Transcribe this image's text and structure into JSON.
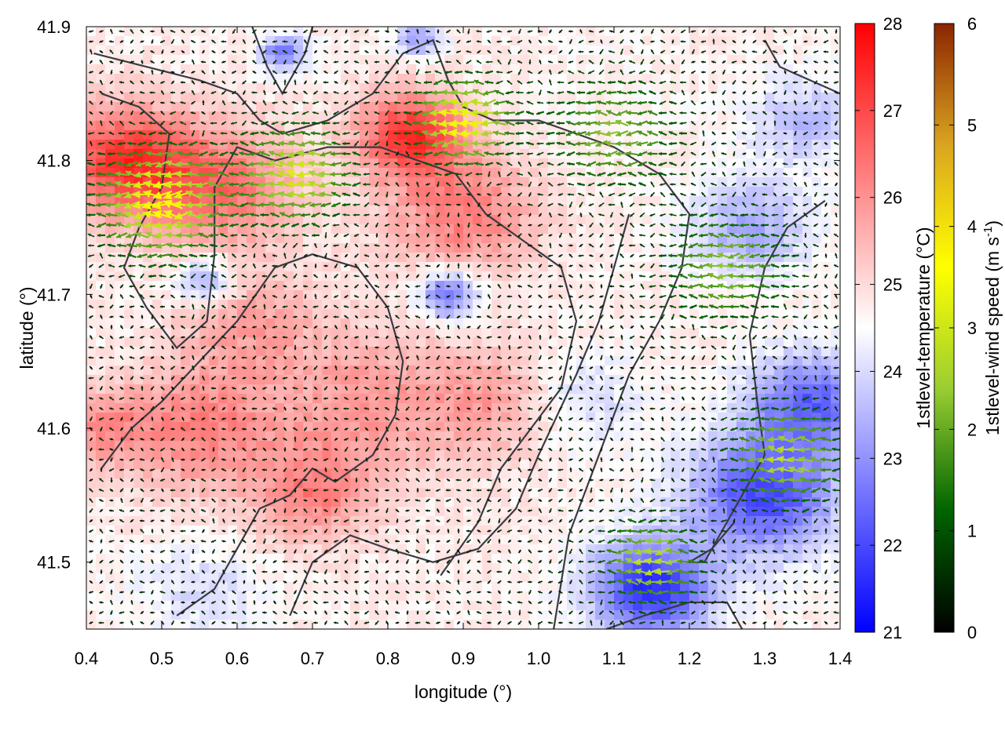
{
  "chart_data": {
    "type": "heatmap",
    "title": "",
    "xlabel": "longitude (°)",
    "ylabel": "latitude (°)",
    "xlim": [
      0.4,
      1.4
    ],
    "ylim": [
      41.45,
      41.9
    ],
    "xticks": [
      "0.4",
      "0.5",
      "0.6",
      "0.7",
      "0.8",
      "0.9",
      "1.0",
      "1.1",
      "1.2",
      "1.3",
      "1.4"
    ],
    "yticks": [
      "41.5",
      "41.6",
      "41.7",
      "41.8",
      "41.9"
    ],
    "grid": false,
    "layers": [
      {
        "name": "1stlevel-temperature",
        "kind": "color-map",
        "unit": "°C"
      },
      {
        "name": "1stlevel-wind speed",
        "kind": "wind-vectors",
        "unit": "m s-1"
      },
      {
        "name": "coastline / terrain contours",
        "kind": "lines"
      }
    ],
    "colorbars": [
      {
        "label": "1stlevel-temperature (°C)",
        "range": [
          21,
          28
        ],
        "ticks": [
          "21",
          "22",
          "23",
          "24",
          "25",
          "26",
          "27",
          "28"
        ],
        "colors": [
          "#0000ff",
          "#ffffff",
          "#ff0000"
        ]
      },
      {
        "label_main": "1stlevel-wind speed (m s",
        "label_sup": "-1",
        "label_end": ")",
        "range": [
          0,
          6
        ],
        "ticks": [
          "0",
          "1",
          "2",
          "3",
          "4",
          "5",
          "6"
        ],
        "colors": [
          "#000000",
          "#006400",
          "#9acd32",
          "#ffff00",
          "#daa520",
          "#8b2500"
        ]
      }
    ],
    "temperature_hotspots": [
      {
        "lon": 0.45,
        "lat": 41.8,
        "value": 27.2,
        "spread": 0.09
      },
      {
        "lon": 0.58,
        "lat": 41.78,
        "value": 26.4,
        "spread": 0.1
      },
      {
        "lon": 0.83,
        "lat": 41.82,
        "value": 27.3,
        "spread": 0.07
      },
      {
        "lon": 0.9,
        "lat": 41.76,
        "value": 26.3,
        "spread": 0.1
      },
      {
        "lon": 0.78,
        "lat": 41.62,
        "value": 25.9,
        "spread": 0.12
      },
      {
        "lon": 0.55,
        "lat": 41.6,
        "value": 26.2,
        "spread": 0.11
      },
      {
        "lon": 0.7,
        "lat": 41.55,
        "value": 26.1,
        "spread": 0.08
      },
      {
        "lon": 0.95,
        "lat": 41.62,
        "value": 25.8,
        "spread": 0.09
      },
      {
        "lon": 0.62,
        "lat": 41.68,
        "value": 25.7,
        "spread": 0.09
      },
      {
        "lon": 0.42,
        "lat": 41.6,
        "value": 25.8,
        "spread": 0.06
      },
      {
        "lon": 0.88,
        "lat": 41.7,
        "value": 22.3,
        "spread": 0.04
      },
      {
        "lon": 0.56,
        "lat": 41.71,
        "value": 23.1,
        "spread": 0.04
      },
      {
        "lon": 0.66,
        "lat": 41.88,
        "value": 22.6,
        "spread": 0.03
      },
      {
        "lon": 0.84,
        "lat": 41.89,
        "value": 23.2,
        "spread": 0.03
      },
      {
        "lon": 1.15,
        "lat": 41.48,
        "value": 21.6,
        "spread": 0.08
      },
      {
        "lon": 1.3,
        "lat": 41.55,
        "value": 22.0,
        "spread": 0.1
      },
      {
        "lon": 1.36,
        "lat": 41.62,
        "value": 22.4,
        "spread": 0.08
      },
      {
        "lon": 1.28,
        "lat": 41.75,
        "value": 23.3,
        "spread": 0.08
      },
      {
        "lon": 1.35,
        "lat": 41.83,
        "value": 23.6,
        "spread": 0.07
      },
      {
        "lon": 1.05,
        "lat": 41.62,
        "value": 23.8,
        "spread": 0.08
      },
      {
        "lon": 0.55,
        "lat": 41.48,
        "value": 24.0,
        "spread": 0.08
      },
      {
        "lon": 1.1,
        "lat": 41.85,
        "value": 24.6,
        "spread": 0.1
      }
    ],
    "temperature_base": 24.7,
    "wind_base_direction": "from east (vectors point west)",
    "strong_wind_zones": [
      {
        "lon": 0.5,
        "lat": 41.77,
        "speed": 3.2,
        "spread": 0.08
      },
      {
        "lon": 0.9,
        "lat": 41.83,
        "speed": 3.2,
        "spread": 0.06
      },
      {
        "lon": 0.68,
        "lat": 41.79,
        "speed": 2.6,
        "spread": 0.07
      },
      {
        "lon": 1.15,
        "lat": 41.5,
        "speed": 2.4,
        "spread": 0.06
      },
      {
        "lon": 1.33,
        "lat": 41.58,
        "speed": 2.3,
        "spread": 0.07
      },
      {
        "lon": 1.25,
        "lat": 41.72,
        "speed": 1.8,
        "spread": 0.08
      },
      {
        "lon": 1.1,
        "lat": 41.82,
        "speed": 1.8,
        "spread": 0.08
      }
    ],
    "contours": [
      [
        [
          0.41,
          41.88
        ],
        [
          0.48,
          41.87
        ],
        [
          0.55,
          41.86
        ],
        [
          0.6,
          41.85
        ],
        [
          0.63,
          41.83
        ],
        [
          0.66,
          41.82
        ],
        [
          0.72,
          41.83
        ],
        [
          0.78,
          41.85
        ],
        [
          0.82,
          41.88
        ],
        [
          0.86,
          41.89
        ],
        [
          0.88,
          41.86
        ],
        [
          0.9,
          41.84
        ],
        [
          0.94,
          41.83
        ],
        [
          1.0,
          41.83
        ],
        [
          1.05,
          41.82
        ],
        [
          1.1,
          41.81
        ],
        [
          1.16,
          41.79
        ],
        [
          1.2,
          41.76
        ],
        [
          1.19,
          41.72
        ],
        [
          1.16,
          41.68
        ],
        [
          1.12,
          41.64
        ],
        [
          1.08,
          41.58
        ],
        [
          1.04,
          41.52
        ],
        [
          1.02,
          41.45
        ]
      ],
      [
        [
          0.42,
          41.85
        ],
        [
          0.47,
          41.84
        ],
        [
          0.51,
          41.82
        ],
        [
          0.5,
          41.78
        ],
        [
          0.47,
          41.75
        ],
        [
          0.45,
          41.72
        ],
        [
          0.48,
          41.69
        ],
        [
          0.52,
          41.66
        ],
        [
          0.56,
          41.68
        ],
        [
          0.57,
          41.73
        ],
        [
          0.57,
          41.78
        ],
        [
          0.6,
          41.81
        ],
        [
          0.65,
          41.8
        ],
        [
          0.72,
          41.81
        ],
        [
          0.79,
          41.81
        ],
        [
          0.84,
          41.8
        ],
        [
          0.89,
          41.79
        ],
        [
          0.93,
          41.76
        ],
        [
          0.98,
          41.74
        ],
        [
          1.03,
          41.72
        ],
        [
          1.05,
          41.68
        ],
        [
          1.03,
          41.63
        ],
        [
          0.99,
          41.6
        ],
        [
          0.95,
          41.57
        ],
        [
          0.92,
          41.53
        ],
        [
          0.87,
          41.49
        ]
      ],
      [
        [
          0.42,
          41.57
        ],
        [
          0.46,
          41.6
        ],
        [
          0.5,
          41.62
        ],
        [
          0.55,
          41.65
        ],
        [
          0.6,
          41.68
        ],
        [
          0.65,
          41.72
        ],
        [
          0.7,
          41.73
        ],
        [
          0.76,
          41.72
        ],
        [
          0.8,
          41.69
        ],
        [
          0.82,
          41.65
        ],
        [
          0.81,
          41.61
        ],
        [
          0.78,
          41.58
        ],
        [
          0.73,
          41.56
        ],
        [
          0.7,
          41.57
        ],
        [
          0.67,
          41.55
        ],
        [
          0.63,
          41.54
        ],
        [
          0.6,
          41.51
        ],
        [
          0.57,
          41.48
        ],
        [
          0.52,
          41.46
        ]
      ],
      [
        [
          0.67,
          41.46
        ],
        [
          0.7,
          41.5
        ],
        [
          0.75,
          41.52
        ],
        [
          0.8,
          41.51
        ],
        [
          0.86,
          41.5
        ],
        [
          0.92,
          41.51
        ],
        [
          0.97,
          41.54
        ],
        [
          1.0,
          41.58
        ],
        [
          1.05,
          41.64
        ],
        [
          1.08,
          41.68
        ],
        [
          1.1,
          41.72
        ],
        [
          1.12,
          41.76
        ]
      ],
      [
        [
          1.38,
          41.77
        ],
        [
          1.33,
          41.75
        ],
        [
          1.3,
          41.72
        ],
        [
          1.28,
          41.67
        ],
        [
          1.29,
          41.62
        ],
        [
          1.3,
          41.58
        ],
        [
          1.27,
          41.55
        ],
        [
          1.24,
          41.52
        ],
        [
          1.22,
          41.5
        ],
        [
          1.2,
          41.5
        ],
        [
          1.23,
          41.51
        ],
        [
          1.26,
          41.53
        ]
      ],
      [
        [
          1.09,
          41.45
        ],
        [
          1.14,
          41.46
        ],
        [
          1.2,
          41.47
        ],
        [
          1.25,
          41.47
        ],
        [
          1.27,
          41.45
        ]
      ],
      [
        [
          0.62,
          41.9
        ],
        [
          0.64,
          41.87
        ],
        [
          0.66,
          41.85
        ],
        [
          0.69,
          41.88
        ],
        [
          0.7,
          41.9
        ]
      ],
      [
        [
          1.3,
          41.89
        ],
        [
          1.32,
          41.87
        ],
        [
          1.36,
          41.86
        ],
        [
          1.4,
          41.85
        ]
      ]
    ]
  }
}
